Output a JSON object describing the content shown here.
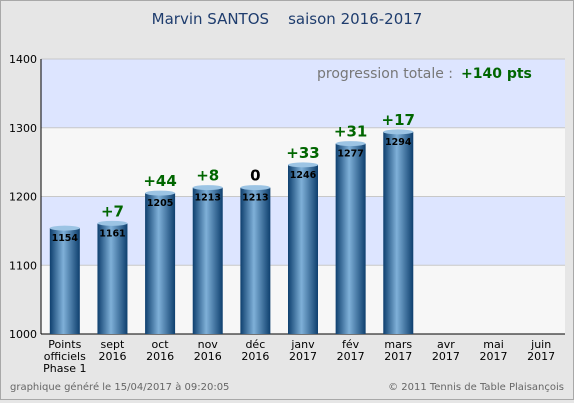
{
  "chart_data": {
    "type": "bar",
    "title": "Marvin SANTOS    saison 2016-2017",
    "categories": [
      [
        "Points",
        "officiels",
        "Phase 1"
      ],
      [
        "sept",
        "2016"
      ],
      [
        "oct",
        "2016"
      ],
      [
        "nov",
        "2016"
      ],
      [
        "déc",
        "2016"
      ],
      [
        "janv",
        "2017"
      ],
      [
        "fév",
        "2017"
      ],
      [
        "mars",
        "2017"
      ],
      [
        "avr",
        "2017"
      ],
      [
        "mai",
        "2017"
      ],
      [
        "juin",
        "2017"
      ]
    ],
    "values": [
      1154,
      1161,
      1205,
      1213,
      1213,
      1246,
      1277,
      1294,
      null,
      null,
      null
    ],
    "value_labels": [
      "1154",
      "1161",
      "1205",
      "1213",
      "1213",
      "1246",
      "1277",
      "1294",
      "",
      "",
      ""
    ],
    "deltas": [
      "",
      "+7",
      "+44",
      "+8",
      "0",
      "+33",
      "+31",
      "+17",
      "",
      "",
      ""
    ],
    "ylim": [
      1000,
      1400
    ],
    "yticks": [
      1000,
      1100,
      1200,
      1300,
      1400
    ],
    "ytick_labels": [
      "1000",
      "1100",
      "1200",
      "1300",
      "1400"
    ],
    "grid": true,
    "xlabel": "",
    "ylabel": "",
    "progression_label": "progression totale :",
    "progression_value": "+140 pts",
    "footer_left": "graphique généré le 15/04/2017 à 09:20:05",
    "footer_right": "© 2011 Tennis de Table Plaisançois",
    "colors": {
      "band_blue": "#dde5ff",
      "band_white": "#f7f7f7",
      "bar_dark": "#0e3f6e",
      "bar_light": "#7fb0d8",
      "delta_positive": "#006600",
      "delta_zero": "#000000",
      "title": "#1f3d6e",
      "progression_label": "#777777"
    }
  }
}
